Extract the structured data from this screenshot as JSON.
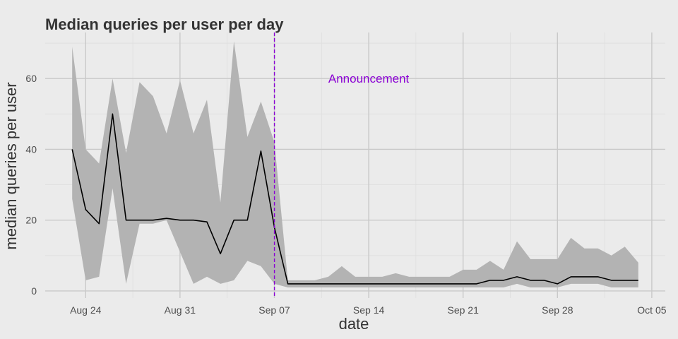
{
  "chart_data": {
    "type": "area",
    "title": "Median queries per user per day",
    "xlabel": "date",
    "ylabel": "median queries per user",
    "x_ticks": [
      "Aug 24",
      "Aug 31",
      "Sep 07",
      "Sep 14",
      "Sep 21",
      "Sep 28",
      "Oct 05"
    ],
    "y_ticks": [
      0,
      20,
      40,
      60
    ],
    "ylim": [
      -2,
      73
    ],
    "xlim": [
      "2015-08-21",
      "2015-10-06"
    ],
    "grid": true,
    "colors": {
      "background": "#ebebeb",
      "band": "#b3b3b3",
      "line": "#000000",
      "annotation": "#8a00d4"
    },
    "annotation": {
      "label": "Announcement",
      "date": "2015-09-08",
      "label_date": "2015-09-14",
      "label_y": 60
    },
    "dates": [
      "2015-08-23",
      "2015-08-24",
      "2015-08-25",
      "2015-08-26",
      "2015-08-27",
      "2015-08-28",
      "2015-08-29",
      "2015-08-30",
      "2015-08-31",
      "2015-09-01",
      "2015-09-02",
      "2015-09-03",
      "2015-09-04",
      "2015-09-05",
      "2015-09-06",
      "2015-09-07",
      "2015-09-08",
      "2015-09-09",
      "2015-09-10",
      "2015-09-11",
      "2015-09-12",
      "2015-09-13",
      "2015-09-14",
      "2015-09-15",
      "2015-09-16",
      "2015-09-17",
      "2015-09-18",
      "2015-09-19",
      "2015-09-20",
      "2015-09-21",
      "2015-09-22",
      "2015-09-23",
      "2015-09-24",
      "2015-09-25",
      "2015-09-26",
      "2015-09-27",
      "2015-09-28",
      "2015-09-29",
      "2015-09-30",
      "2015-10-01",
      "2015-10-02",
      "2015-10-03",
      "2015-10-04"
    ],
    "series": [
      {
        "role": "median",
        "values": [
          40,
          23,
          19,
          50,
          20,
          20,
          20,
          20.5,
          20,
          20,
          19.5,
          10.5,
          20,
          20,
          39.5,
          18,
          2,
          2,
          2,
          2,
          2,
          2,
          2,
          2,
          2,
          2,
          2,
          2,
          2,
          2,
          2,
          3,
          3,
          4,
          3,
          3,
          2,
          4,
          4,
          4,
          3,
          3,
          3
        ]
      },
      {
        "role": "band_upper",
        "values": [
          69,
          40,
          36,
          60,
          39,
          59,
          55,
          44.5,
          59.5,
          44.5,
          54,
          25,
          70.5,
          43.5,
          53.5,
          42,
          3,
          3,
          3,
          4,
          7,
          4,
          4,
          4,
          5,
          4,
          4,
          4,
          4,
          6,
          6,
          8.5,
          6,
          14,
          9,
          9,
          9,
          15,
          12,
          12,
          10,
          12.5,
          8
        ]
      },
      {
        "role": "band_lower",
        "values": [
          26,
          3,
          4,
          29,
          2,
          19,
          19,
          20,
          11,
          2,
          4,
          2,
          3,
          8.5,
          7,
          2,
          1,
          1,
          1,
          1,
          1,
          1,
          1,
          1,
          1,
          1,
          1,
          1,
          1,
          1,
          1,
          1,
          1,
          2,
          1,
          1,
          1,
          2,
          2,
          2,
          1,
          1,
          1
        ]
      }
    ]
  }
}
